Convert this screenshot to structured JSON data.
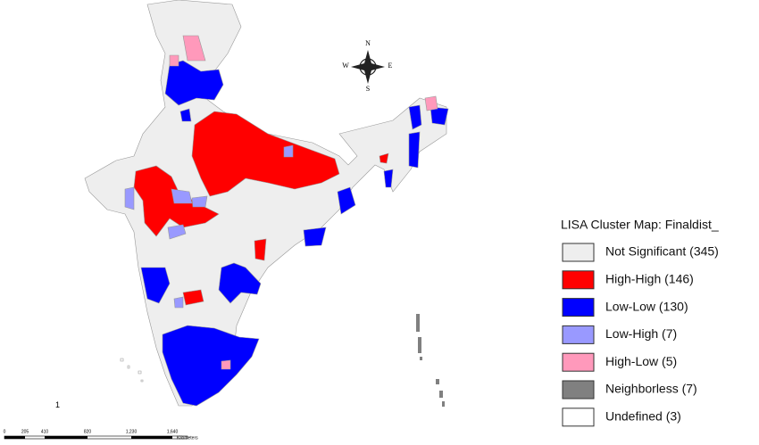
{
  "legend": {
    "title": "LISA Cluster Map: Finaldist_",
    "items": [
      {
        "label": "Not Significant (345)",
        "color": "#eeeeee"
      },
      {
        "label": "High-High (146)",
        "color": "#ff0000"
      },
      {
        "label": "Low-Low (130)",
        "color": "#0000ff"
      },
      {
        "label": "Low-High (7)",
        "color": "#9999ff"
      },
      {
        "label": "High-Low (5)",
        "color": "#ff99bb"
      },
      {
        "label": "Neighborless (7)",
        "color": "#808080"
      },
      {
        "label": "Undefined (3)",
        "color": "#ffffff"
      }
    ]
  },
  "compass": {
    "n": "N",
    "s": "S",
    "e": "E",
    "w": "W"
  },
  "map_label": "1",
  "scale_bar": {
    "labels": [
      "0",
      "205",
      "410",
      "820",
      "1,230",
      "1,640"
    ],
    "unit": "Kilometers"
  }
}
